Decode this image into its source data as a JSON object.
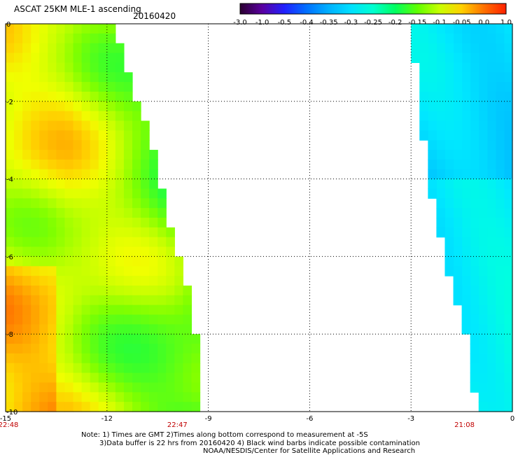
{
  "header": {
    "title": "ASCAT 25KM MLE-1 ascending",
    "date": "20160420"
  },
  "colorbar": {
    "labels": [
      "-3.0",
      "-1.0",
      "-0.5",
      "-0.4",
      "-0.35",
      "-0.3",
      "-0.25",
      "-0.2",
      "-0.15",
      "-0.1",
      "-0.05",
      "0.0",
      "1.0"
    ],
    "colors": [
      "#2a0030",
      "#5a00a0",
      "#2020ff",
      "#0070ff",
      "#00b0ff",
      "#00e0ff",
      "#00ffd0",
      "#00ff60",
      "#60ff00",
      "#c8ff00",
      "#ffd000",
      "#ff7000",
      "#ff2000"
    ]
  },
  "chart_data": {
    "type": "heatmap",
    "title": "ASCAT 25KM MLE-1 ascending",
    "date": "20160420",
    "x_ticks": [
      "-15",
      "-12",
      "-9",
      "-6",
      "-3",
      "0"
    ],
    "y_ticks": [
      "0",
      "-2",
      "-4",
      "-6",
      "-8",
      "-10"
    ],
    "xlim": [
      -15,
      0
    ],
    "ylim": [
      -10,
      0
    ],
    "grid": true,
    "time_labels": [
      {
        "x": -15,
        "text": "22:48"
      },
      {
        "x": -10,
        "text": "22:47"
      },
      {
        "x": -1.5,
        "text": "21:08"
      }
    ],
    "swaths": [
      {
        "name": "west",
        "edge": [
          [
            -12.0,
            0
          ],
          [
            -11.7,
            -0.5
          ],
          [
            -11.4,
            -1.5
          ],
          [
            -11.0,
            -2.5
          ],
          [
            -10.7,
            -3.5
          ],
          [
            -10.3,
            -5.0
          ],
          [
            -10.0,
            -6.0
          ],
          [
            -9.7,
            -7.0
          ],
          [
            -9.3,
            -9.0
          ],
          [
            -9.3,
            -10.0
          ]
        ],
        "dominant_value_range": [
          -0.15,
          -0.05
        ]
      },
      {
        "name": "east",
        "edge": [
          [
            -3.2,
            0
          ],
          [
            -3.0,
            -1.0
          ],
          [
            -2.9,
            -2.0
          ],
          [
            -2.5,
            -4.5
          ],
          [
            -2.0,
            -6.5
          ],
          [
            -1.5,
            -8.0
          ],
          [
            -1.3,
            -9.0
          ],
          [
            -1.2,
            -10.0
          ]
        ],
        "dominant_value_range": [
          -0.35,
          -0.25
        ]
      }
    ]
  },
  "notes": {
    "line1": "Note: 1) Times are GMT 2)Times along bottom correspond to measurement at -5S",
    "line2": "3)Data buffer is 22 hrs from 20160420 4) Black wind barbs indicate possible contamination",
    "line3": "NOAA/NESDIS/Center for Satellite Applications and Research"
  }
}
